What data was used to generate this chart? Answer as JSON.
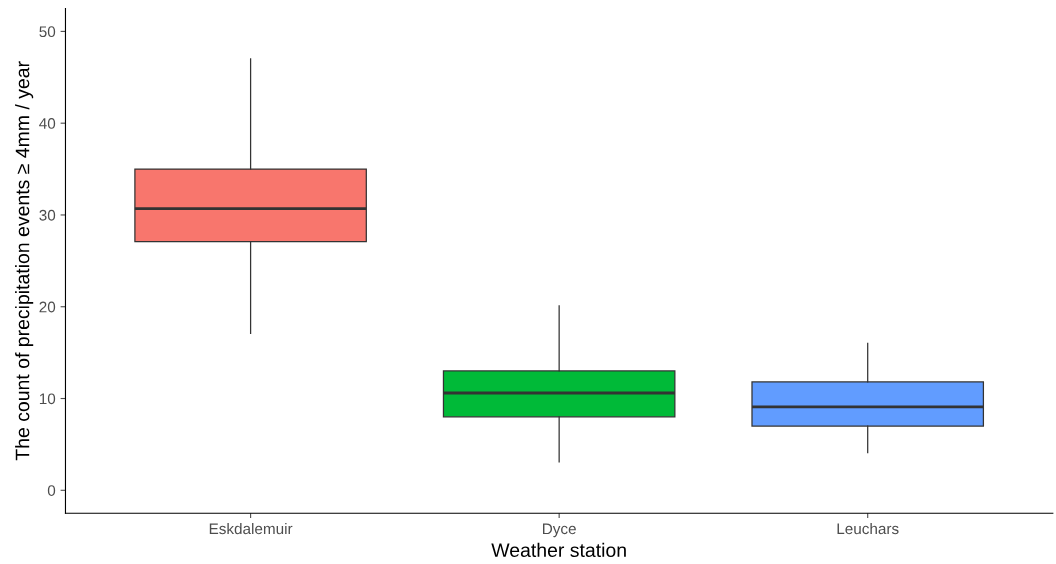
{
  "chart_data": {
    "type": "box",
    "xlabel": "Weather station",
    "ylabel": "The count of precipitation events ≥ 4mm / year",
    "categories": [
      "Eskdalemuir",
      "Dyce",
      "Leuchars"
    ],
    "colors": [
      "#f8766d",
      "#00ba38",
      "#619cff"
    ],
    "boxes": [
      {
        "low": 17.1,
        "q1": 27.1,
        "median": 30.7,
        "q3": 35.0,
        "high": 47.0
      },
      {
        "low": 3.1,
        "q1": 8.0,
        "median": 10.6,
        "q3": 13.0,
        "high": 20.1
      },
      {
        "low": 4.1,
        "q1": 7.0,
        "median": 9.1,
        "q3": 11.8,
        "high": 16.0
      }
    ],
    "ylim": [
      -2.5,
      52.5
    ],
    "yticks": [
      0,
      10,
      20,
      30,
      40,
      50
    ],
    "grid": false,
    "legend": false
  }
}
